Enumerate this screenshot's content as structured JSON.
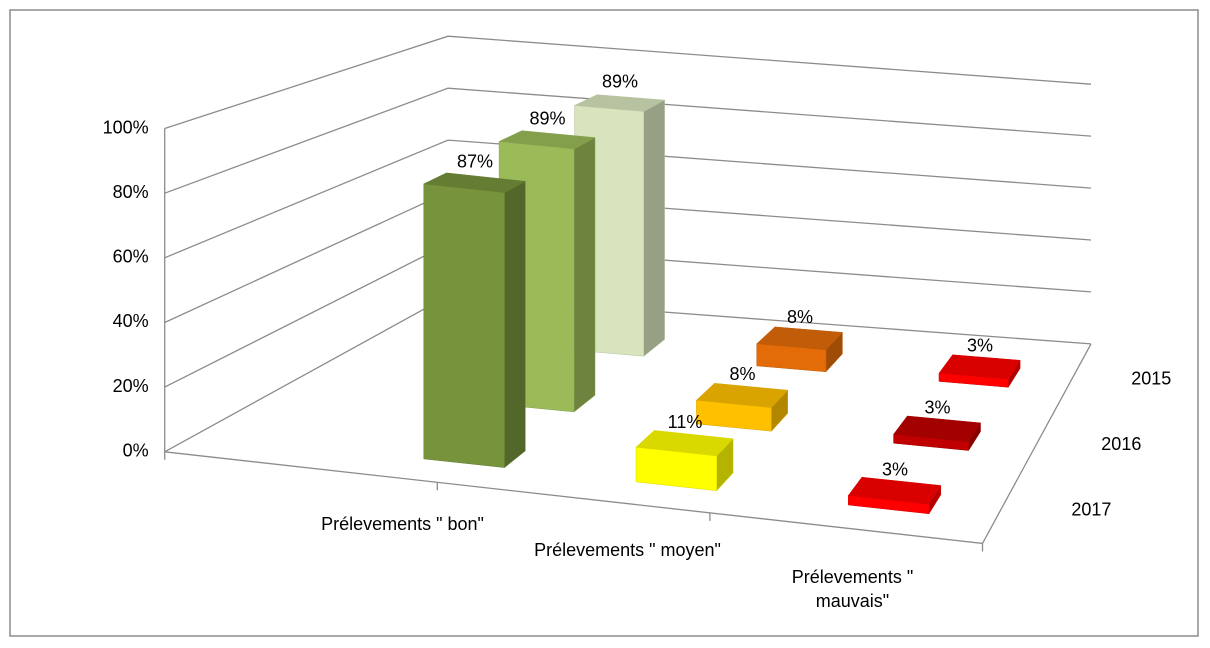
{
  "chart_data": {
    "type": "bar3d",
    "categories": [
      "Prélevements \" bon\"",
      "Prélevements \" moyen\"",
      "Prélevements \" mauvais\""
    ],
    "series": [
      {
        "name": "2017",
        "colors": [
          "#77933c",
          "#ffff00",
          "#ff0000"
        ],
        "values": [
          87,
          11,
          3
        ],
        "value_labels": [
          "87%",
          "11%",
          "3%"
        ]
      },
      {
        "name": "2016",
        "colors": [
          "#9bbb59",
          "#ffc000",
          "#c00000"
        ],
        "values": [
          89,
          8,
          3
        ],
        "value_labels": [
          "89%",
          "8%",
          "3%"
        ]
      },
      {
        "name": "2015",
        "colors": [
          "#d7e4bd",
          "#e36c09",
          "#ff0000"
        ],
        "values": [
          89,
          8,
          3
        ],
        "value_labels": [
          "89%",
          "8%",
          "3%"
        ]
      }
    ],
    "ylim": [
      0,
      100
    ],
    "yticks": [
      {
        "value": 0,
        "label": "0%"
      },
      {
        "value": 20,
        "label": "20%"
      },
      {
        "value": 40,
        "label": "40%"
      },
      {
        "value": 60,
        "label": "60%"
      },
      {
        "value": 80,
        "label": "80%"
      },
      {
        "value": 100,
        "label": "100%"
      }
    ],
    "grid": true
  }
}
